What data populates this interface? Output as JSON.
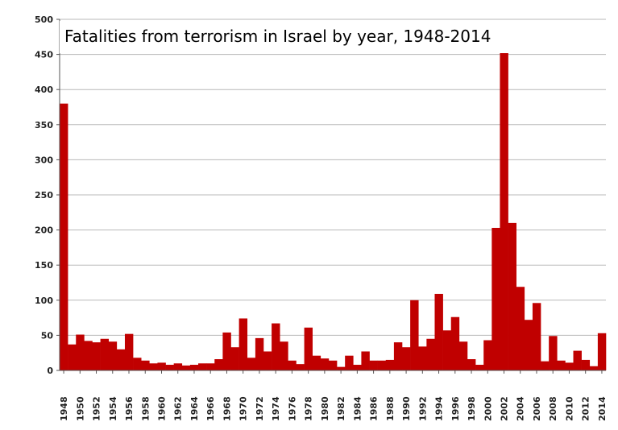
{
  "chart_data": {
    "type": "bar",
    "title": "Fatalities from terrorism in Israel by year, 1948-2014",
    "xlabel": "",
    "ylabel": "",
    "ylim": [
      0,
      500
    ],
    "yticks": [
      0,
      50,
      100,
      150,
      200,
      250,
      300,
      350,
      400,
      450,
      500
    ],
    "grid": true,
    "bar_color": "#c00000",
    "categories": [
      "1948",
      "1949",
      "1950",
      "1951",
      "1952",
      "1953",
      "1954",
      "1955",
      "1956",
      "1957",
      "1958",
      "1959",
      "1960",
      "1961",
      "1962",
      "1963",
      "1964",
      "1965",
      "1966",
      "1967",
      "1968",
      "1969",
      "1970",
      "1971",
      "1972",
      "1973",
      "1974",
      "1975",
      "1976",
      "1977",
      "1978",
      "1979",
      "1980",
      "1981",
      "1982",
      "1983",
      "1984",
      "1985",
      "1986",
      "1987",
      "1988",
      "1989",
      "1990",
      "1991",
      "1992",
      "1993",
      "1994",
      "1995",
      "1996",
      "1997",
      "1998",
      "1999",
      "2000",
      "2001",
      "2002",
      "2003",
      "2004",
      "2005",
      "2006",
      "2007",
      "2008",
      "2009",
      "2010",
      "2011",
      "2012",
      "2013",
      "2014"
    ],
    "tick_labels": [
      "1948",
      "1950",
      "1952",
      "1954",
      "1956",
      "1958",
      "1960",
      "1962",
      "1964",
      "1966",
      "1968",
      "1970",
      "1972",
      "1974",
      "1976",
      "1978",
      "1980",
      "1982",
      "1984",
      "1986",
      "1988",
      "1990",
      "1992",
      "1994",
      "1996",
      "1998",
      "2000",
      "2002",
      "2004",
      "2006",
      "2008",
      "2010",
      "2012",
      "2014"
    ],
    "values": [
      380,
      37,
      51,
      42,
      40,
      45,
      41,
      30,
      52,
      18,
      14,
      10,
      11,
      8,
      10,
      7,
      8,
      10,
      10,
      16,
      54,
      33,
      74,
      18,
      46,
      27,
      67,
      41,
      14,
      9,
      61,
      21,
      17,
      14,
      5,
      21,
      8,
      27,
      14,
      14,
      15,
      40,
      33,
      100,
      34,
      45,
      109,
      57,
      76,
      41,
      16,
      8,
      43,
      203,
      452,
      210,
      119,
      72,
      96,
      13,
      49,
      14,
      11,
      28,
      15,
      6,
      53
    ]
  }
}
